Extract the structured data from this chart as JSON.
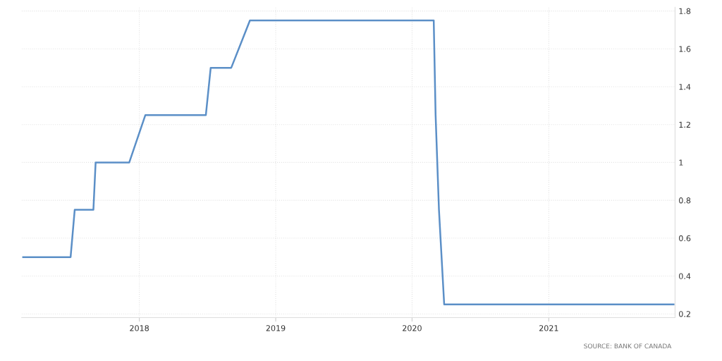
{
  "chart_data": {
    "type": "line",
    "x": [
      "2017-02-24",
      "2017-07-01",
      "2017-07-12",
      "2017-08-31",
      "2017-09-06",
      "2017-12-05",
      "2018-01-17",
      "2018-06-28",
      "2018-07-11",
      "2018-09-04",
      "2018-10-24",
      "2020-02-28",
      "2020-03-04",
      "2020-03-13",
      "2020-03-27",
      "2021-12-01"
    ],
    "series": [
      {
        "color": "#5b8fc7",
        "values": [
          0.5,
          0.5,
          0.75,
          0.75,
          1.0,
          1.0,
          1.25,
          1.25,
          1.5,
          1.5,
          1.75,
          1.75,
          1.25,
          0.75,
          0.25,
          0.25
        ]
      }
    ],
    "xlim": [
      "2017-02-20",
      "2021-12-05"
    ],
    "xticks": [
      {
        "value": "2018-01-01",
        "label": "2018"
      },
      {
        "value": "2019-01-01",
        "label": "2019"
      },
      {
        "value": "2020-01-01",
        "label": "2020"
      },
      {
        "value": "2021-01-01",
        "label": "2021"
      }
    ],
    "ylim": [
      0.18,
      1.82
    ],
    "yticks": [
      0.2,
      0.4,
      0.6,
      0.8,
      {
        "value": 1,
        "label": "1"
      },
      1.2,
      1.4,
      1.6,
      1.8
    ],
    "grid": true,
    "marker": "none",
    "line_style": "solid",
    "annotations": [
      "SOURCE: BANK OF CANADA"
    ]
  }
}
